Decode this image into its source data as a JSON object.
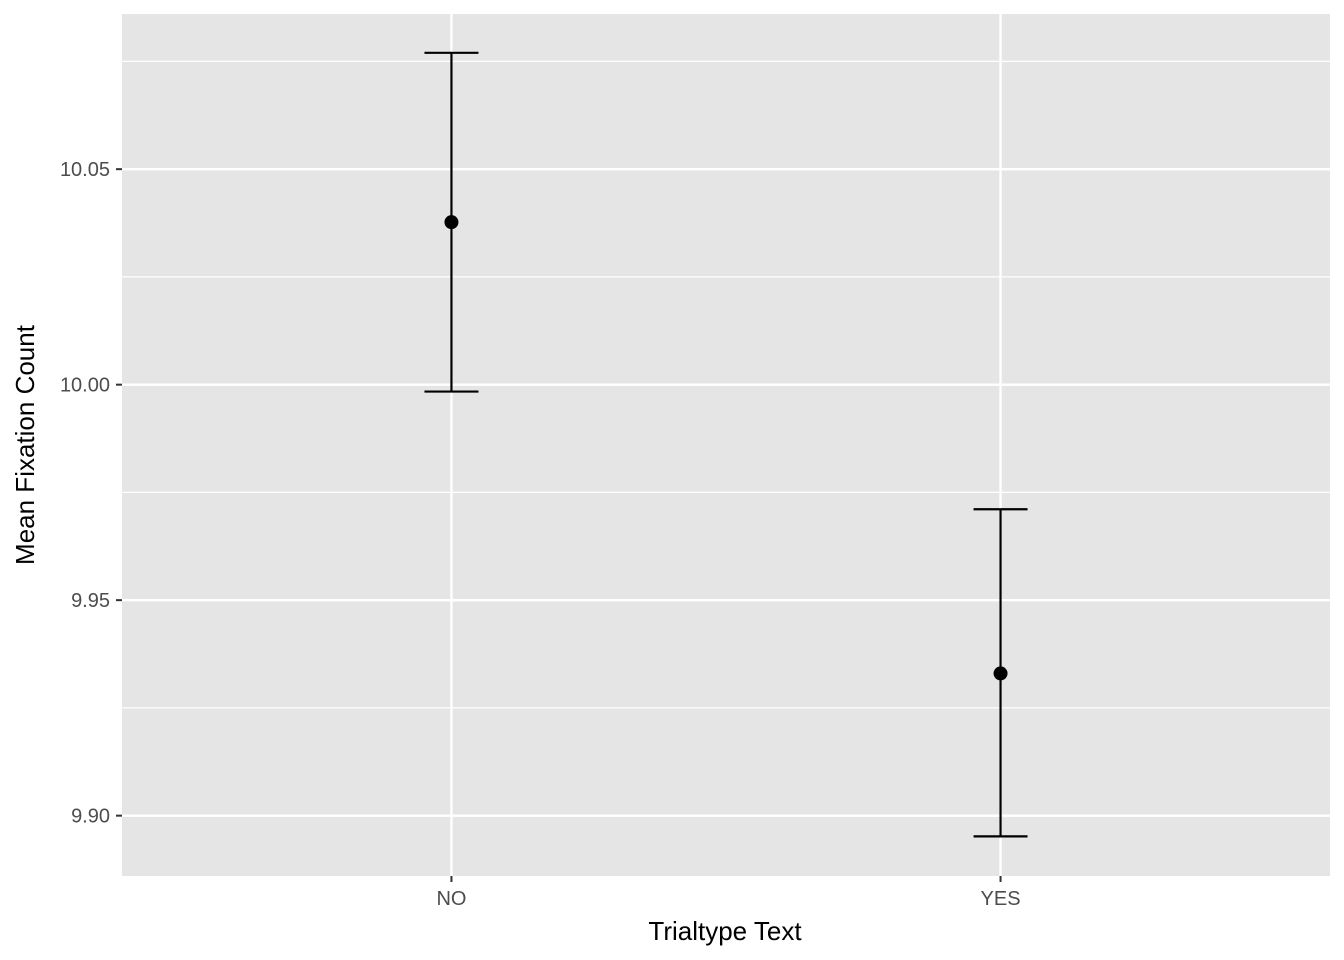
{
  "chart_data": {
    "type": "scatter",
    "subtype": "point-with-errorbars",
    "title": "",
    "xlabel": "Trialtype Text",
    "ylabel": "Mean Fixation Count",
    "categories": [
      "NO",
      "YES"
    ],
    "series": [
      {
        "values": [
          10.0377,
          9.933
        ],
        "error_lower": [
          9.9984,
          9.8952
        ],
        "error_upper": [
          10.077,
          9.9711
        ]
      }
    ],
    "ylim": [
      9.886,
      10.086
    ],
    "yticks": [
      9.9,
      9.95,
      10.0,
      10.05
    ],
    "ytick_labels": [
      "9.90",
      "9.95",
      "10.00",
      "10.05"
    ],
    "grid": true,
    "legend": "none"
  },
  "colors": {
    "panel_background": "#e5e5e5",
    "gridline": "#ffffff",
    "mark": "#000000",
    "tick_text": "#4d4d4d"
  }
}
